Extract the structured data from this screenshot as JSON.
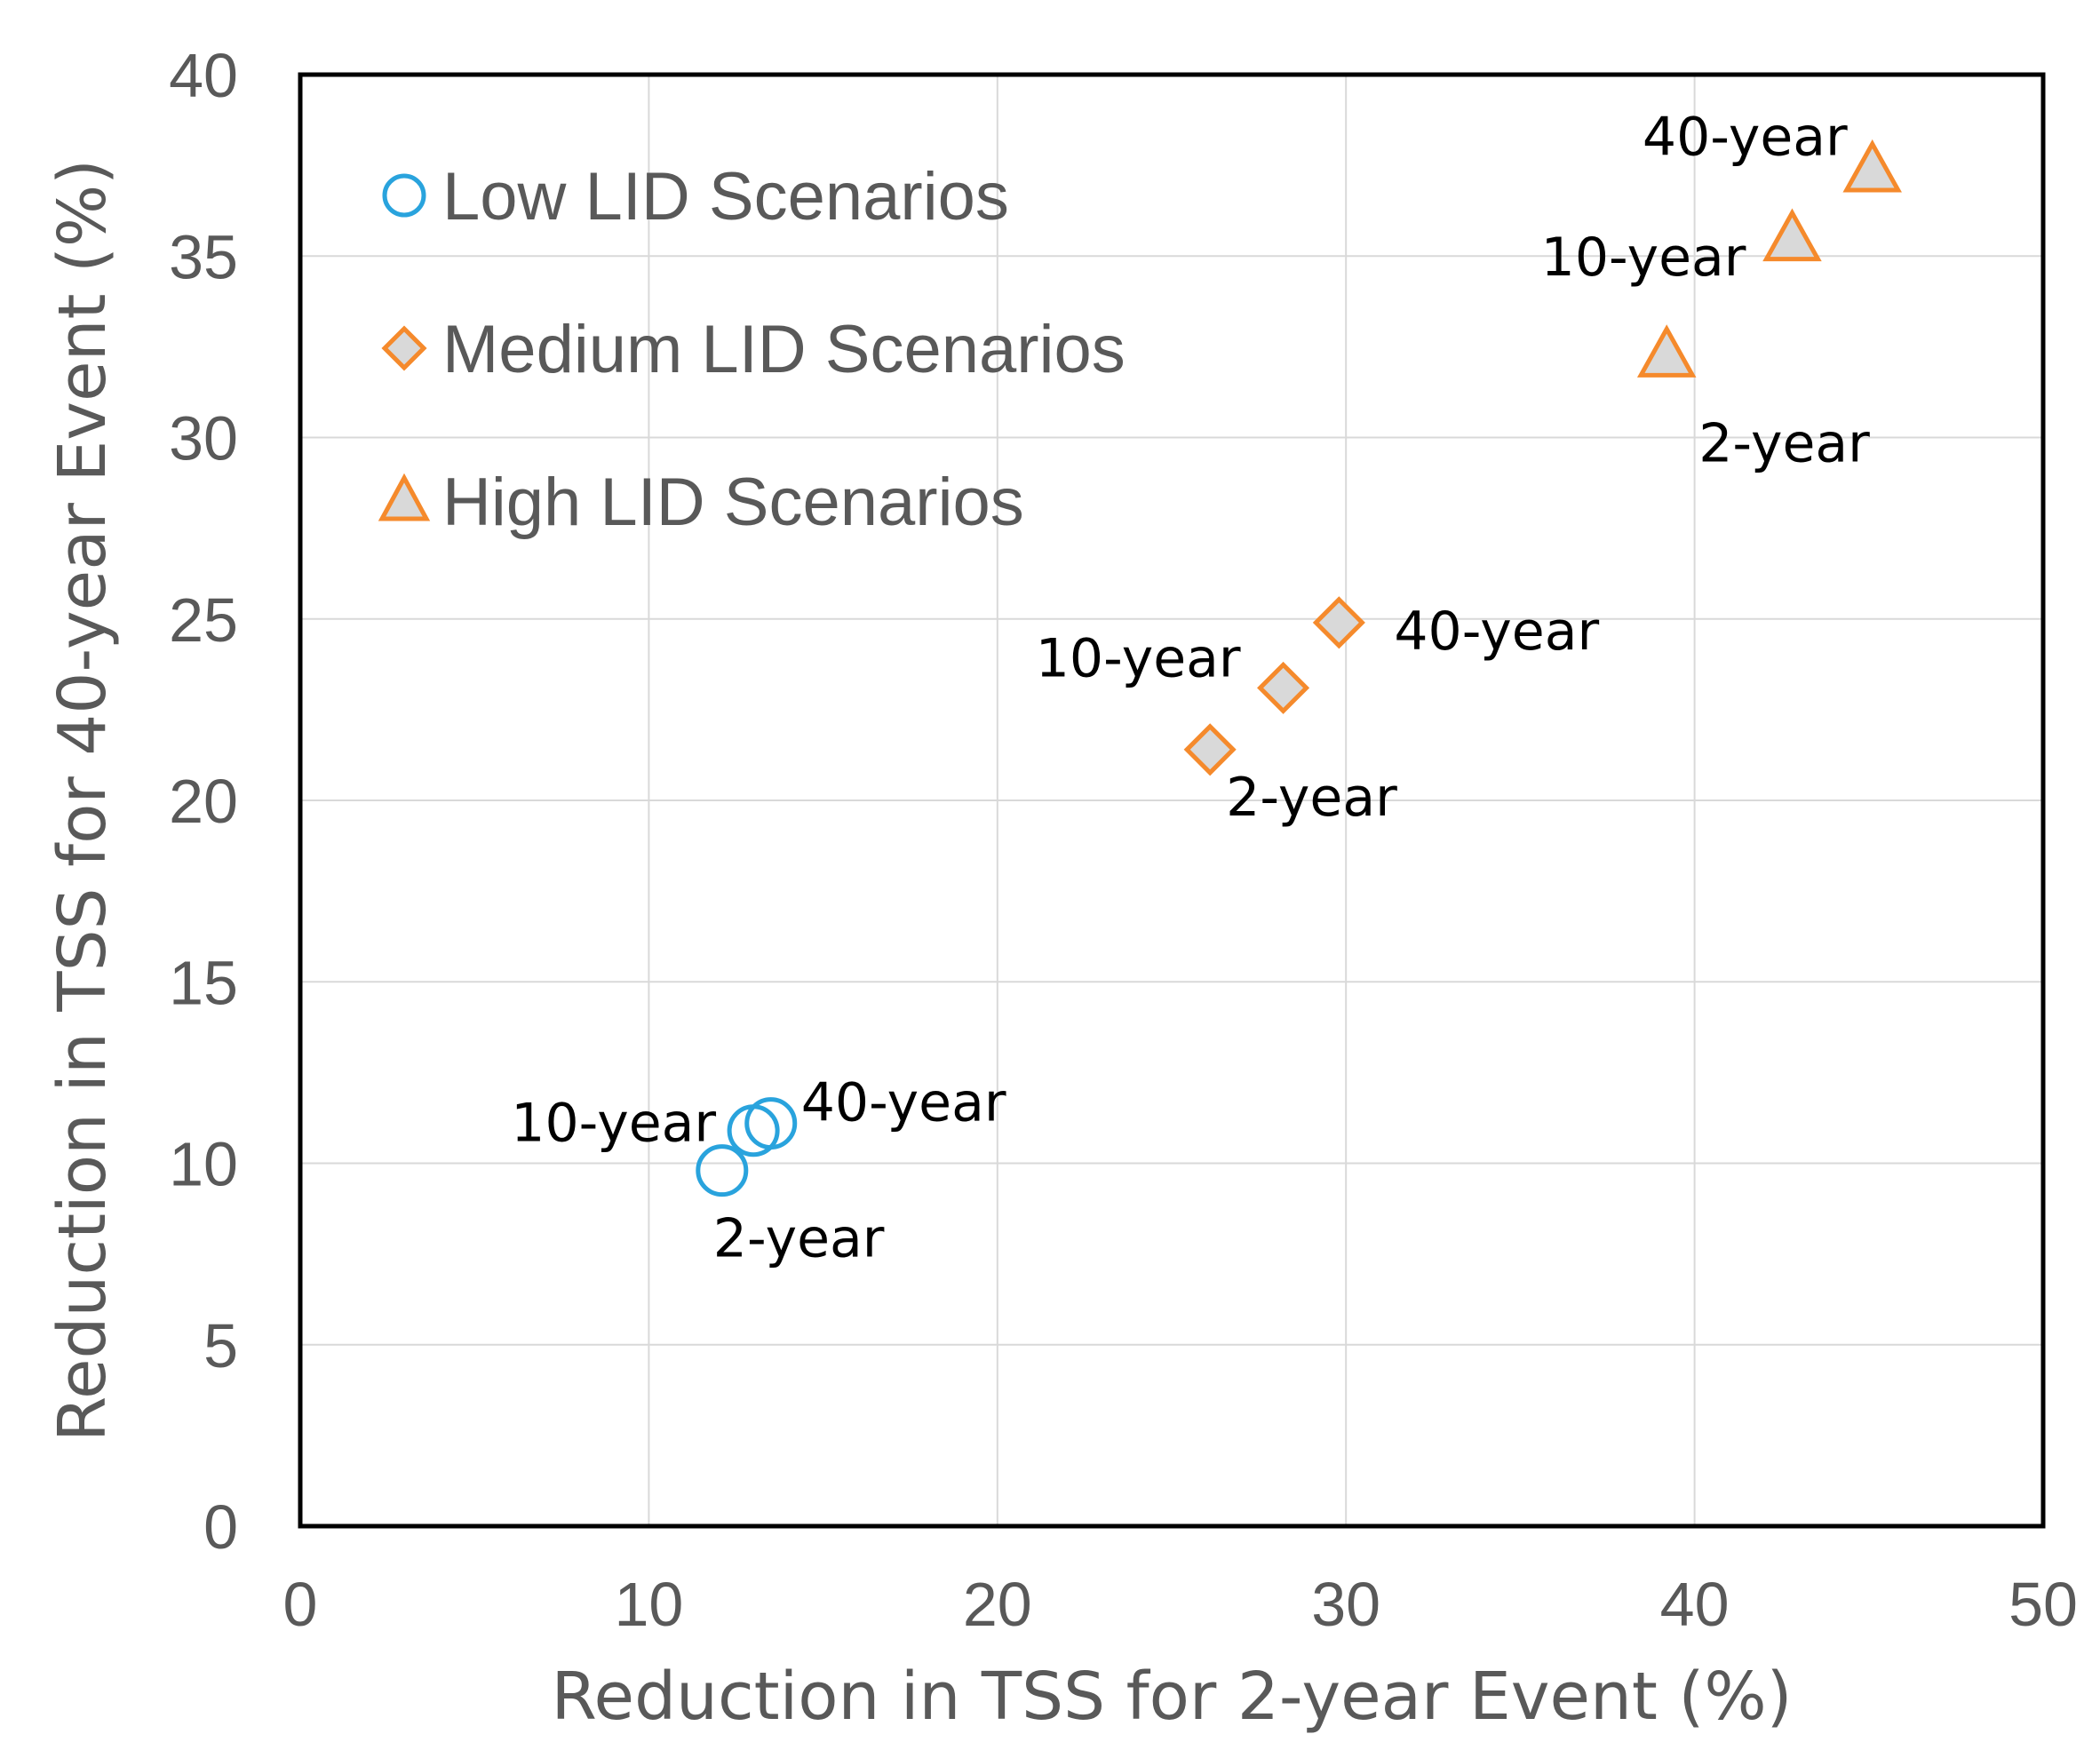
{
  "chart_data": {
    "type": "scatter",
    "xlabel": "Reduction in TSS for 2-year Event (%)",
    "ylabel": "Reduction in TSS for 40-year Event (%)",
    "xlim": [
      0,
      50
    ],
    "ylim": [
      0,
      40
    ],
    "xticks": [
      "0",
      "10",
      "20",
      "30",
      "40",
      "50"
    ],
    "yticks": [
      "0",
      "5",
      "10",
      "15",
      "20",
      "25",
      "30",
      "35",
      "40"
    ],
    "grid": true,
    "legend_position": "top-left",
    "colors": {
      "low": "#29A3DD",
      "medium": "#F58A2C",
      "high": "#F58A2C",
      "marker_fill": "#D9D9D9"
    },
    "series": [
      {
        "name": "Low LID Scenarios",
        "marker": "circle",
        "points": [
          {
            "label": "2-year",
            "x": 12.1,
            "y": 9.8
          },
          {
            "label": "10-year",
            "x": 13.0,
            "y": 10.9
          },
          {
            "label": "40-year",
            "x": 13.5,
            "y": 11.1
          }
        ]
      },
      {
        "name": "Medium LID Scenarios",
        "marker": "diamond",
        "points": [
          {
            "label": "2-year",
            "x": 26.1,
            "y": 21.4
          },
          {
            "label": "10-year",
            "x": 28.2,
            "y": 23.1
          },
          {
            "label": "40-year",
            "x": 29.8,
            "y": 24.9
          }
        ]
      },
      {
        "name": "High LID Scenarios",
        "marker": "triangle",
        "points": [
          {
            "label": "2-year",
            "x": 39.2,
            "y": 32.2
          },
          {
            "label": "10-year",
            "x": 42.8,
            "y": 35.4
          },
          {
            "label": "40-year",
            "x": 45.1,
            "y": 37.3
          }
        ]
      }
    ]
  }
}
